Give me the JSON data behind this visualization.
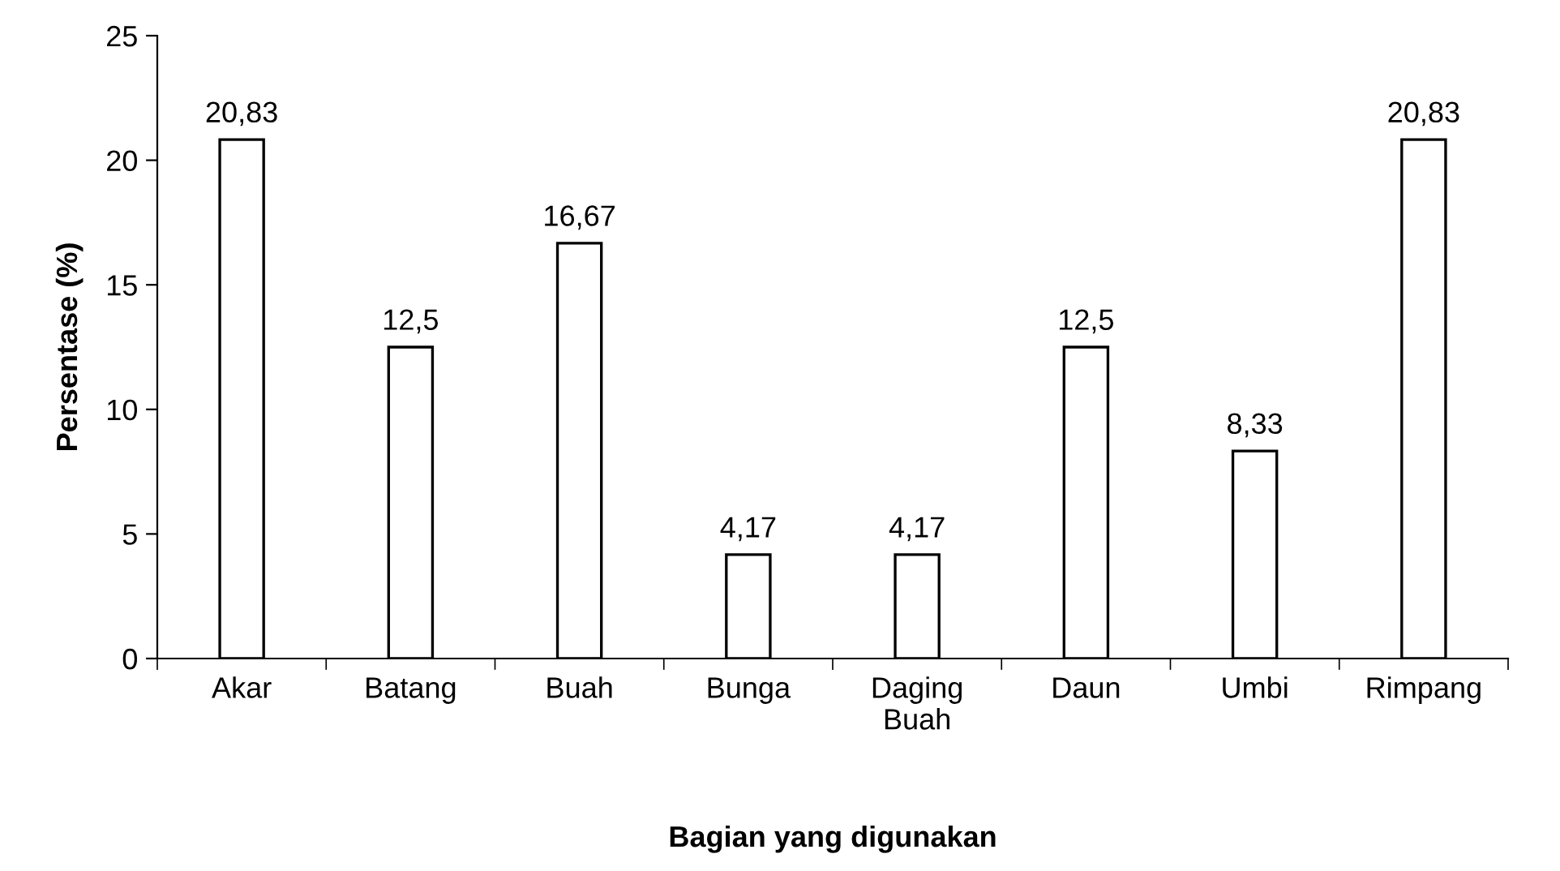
{
  "chart_data": {
    "type": "bar",
    "xlabel": "Bagian yang digunakan",
    "ylabel": "Persentase (%)",
    "categories": [
      "Akar",
      "Batang",
      "Buah",
      "Bunga",
      "Daging\nBuah",
      "Daun",
      "Umbi",
      "Rimpang"
    ],
    "values": [
      20.83,
      12.5,
      16.67,
      4.17,
      4.17,
      12.5,
      8.33,
      20.83
    ],
    "value_labels": [
      "20,83",
      "12,5",
      "16,67",
      "4,17",
      "4,17",
      "12,5",
      "8,33",
      "20,83"
    ],
    "color": "#ffffff",
    "ylim": [
      0,
      25
    ],
    "yticks": [
      0,
      5,
      10,
      15,
      20,
      25
    ],
    "grid": false
  }
}
